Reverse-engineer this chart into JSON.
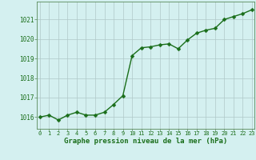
{
  "x": [
    0,
    1,
    2,
    3,
    4,
    5,
    6,
    7,
    8,
    9,
    10,
    11,
    12,
    13,
    14,
    15,
    16,
    17,
    18,
    19,
    20,
    21,
    22,
    23
  ],
  "y": [
    1016.0,
    1016.1,
    1015.85,
    1016.1,
    1016.25,
    1016.1,
    1016.1,
    1016.25,
    1016.65,
    1017.1,
    1019.15,
    1019.55,
    1019.6,
    1019.7,
    1019.75,
    1019.5,
    1019.95,
    1020.3,
    1020.45,
    1020.55,
    1021.0,
    1021.15,
    1021.3,
    1021.5
  ],
  "line_color": "#1a6e1a",
  "marker": "D",
  "marker_size": 2.5,
  "line_width": 1.0,
  "background_color": "#d4f0f0",
  "grid_color": "#b0c8c8",
  "xlabel": "Graphe pression niveau de la mer (hPa)",
  "xlabel_color": "#1a6e1a",
  "xlabel_fontsize": 6.5,
  "ytick_labels": [
    "1016",
    "1017",
    "1018",
    "1019",
    "1020",
    "1021"
  ],
  "ytick_values": [
    1016,
    1017,
    1018,
    1019,
    1020,
    1021
  ],
  "ylim": [
    1015.4,
    1021.9
  ],
  "xlim": [
    -0.3,
    23.3
  ],
  "xtick_labels": [
    "0",
    "1",
    "2",
    "3",
    "4",
    "5",
    "6",
    "7",
    "8",
    "9",
    "10",
    "11",
    "12",
    "13",
    "14",
    "15",
    "16",
    "17",
    "18",
    "19",
    "20",
    "21",
    "22",
    "23"
  ],
  "tick_color": "#1a6e1a",
  "ytick_fontsize": 5.5,
  "xtick_fontsize": 5.0,
  "spine_color": "#5a8a5a"
}
